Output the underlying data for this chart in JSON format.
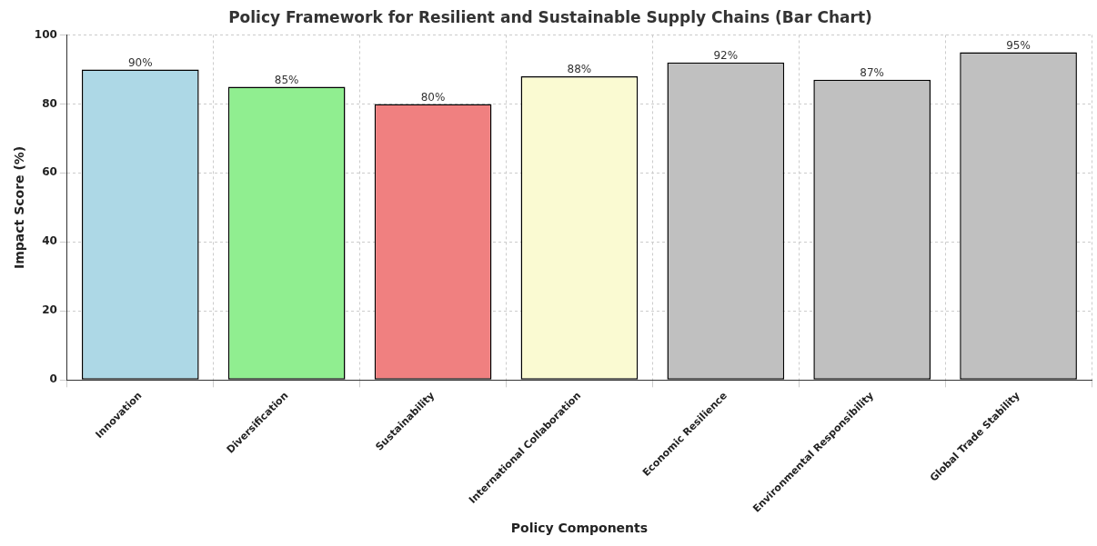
{
  "chart_data": {
    "type": "bar",
    "title": "Policy Framework for Resilient and Sustainable Supply Chains (Bar Chart)",
    "xlabel": "Policy Components",
    "ylabel": "Impact Score (%)",
    "categories": [
      "Innovation",
      "Diversification",
      "Sustainability",
      "International Collaboration",
      "Economic Resilience",
      "Environmental Responsibility",
      "Global Trade Stability"
    ],
    "values": [
      90,
      85,
      80,
      88,
      92,
      87,
      95
    ],
    "colors": [
      "#add8e6",
      "#90ee90",
      "#f08080",
      "#fafad2",
      "#c0c0c0",
      "#c0c0c0",
      "#c0c0c0"
    ],
    "value_labels": [
      "90%",
      "85%",
      "80%",
      "88%",
      "92%",
      "87%",
      "95%"
    ],
    "ylim": [
      0,
      100
    ],
    "yticks": [
      0,
      20,
      40,
      60,
      80,
      100
    ],
    "grid": true
  }
}
